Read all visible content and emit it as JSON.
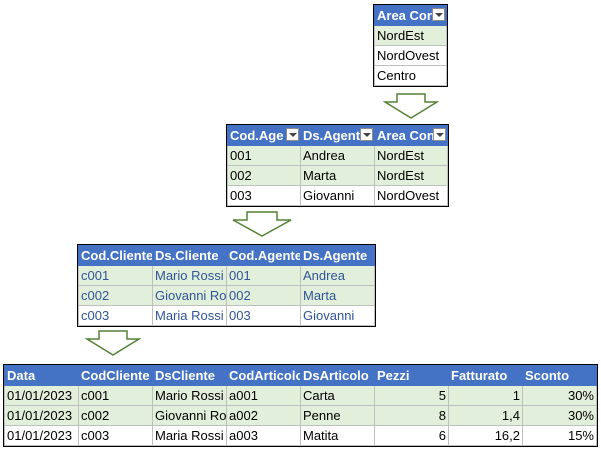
{
  "area_table": {
    "header": "Area Con",
    "rows": [
      "NordEst",
      "NordOvest",
      "Centro"
    ]
  },
  "agent_table": {
    "headers": [
      "Cod.Age",
      "Ds.Agent",
      "Area Con"
    ],
    "rows": [
      [
        "001",
        "Andrea",
        "NordEst"
      ],
      [
        "002",
        "Marta",
        "NordEst"
      ],
      [
        "003",
        "Giovanni",
        "NordOvest"
      ]
    ]
  },
  "client_table": {
    "headers": [
      "Cod.Cliente",
      "Ds.Cliente",
      "Cod.Agente",
      "Ds.Agente"
    ],
    "rows": [
      [
        "c001",
        "Mario Rossi",
        "001",
        "Andrea"
      ],
      [
        "c002",
        "Giovanni Ro",
        "002",
        "Marta"
      ],
      [
        "c003",
        "Maria Rossi",
        "003",
        "Giovanni"
      ]
    ]
  },
  "sales_table": {
    "headers": [
      "Data",
      "CodCliente",
      "DsCliente",
      "CodArticolo",
      "DsArticolo",
      "Pezzi",
      "Fatturato",
      "Sconto"
    ],
    "rows": [
      [
        "01/01/2023",
        "c001",
        "Mario Rossi",
        "a001",
        "Carta",
        "5",
        "1",
        "30%"
      ],
      [
        "01/01/2023",
        "c002",
        "Giovanni Ro",
        "a002",
        "Penne",
        "8",
        "1,4",
        "30%"
      ],
      [
        "01/01/2023",
        "c003",
        "Maria Rossi",
        "a003",
        "Matita",
        "6",
        "16,2",
        "15%"
      ]
    ]
  },
  "colors": {
    "header": "#4472c4",
    "band": "#e2efda",
    "arrow": "#548235",
    "link_text": "#2f5597"
  }
}
